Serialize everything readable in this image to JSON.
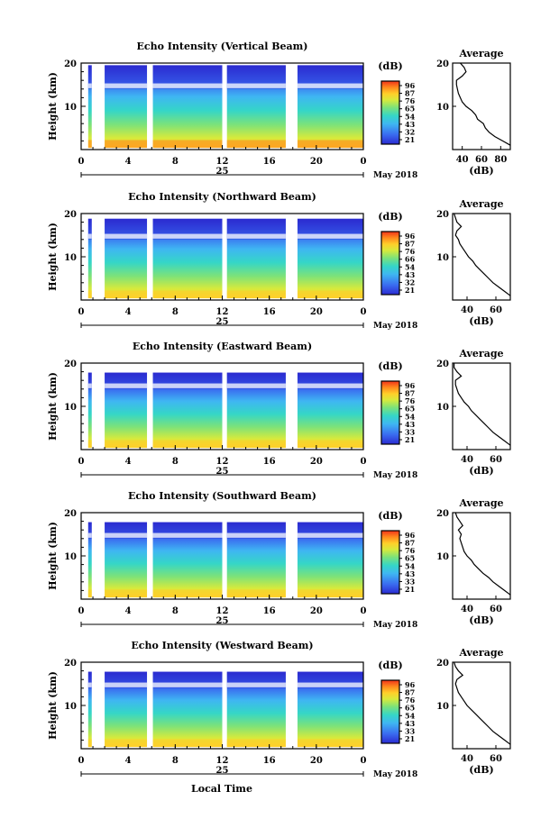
{
  "panels": [
    {
      "title": "Echo Intensity (Vertical Beam)",
      "cbar_ticks": [
        "96",
        "87",
        "76",
        "65",
        "54",
        "43",
        "32",
        "21"
      ],
      "avg_xticks": [
        "40",
        "60",
        "80"
      ],
      "avg_xlim": [
        30,
        90
      ]
    },
    {
      "title": "Echo Intensity (Northward Beam)",
      "cbar_ticks": [
        "96",
        "87",
        "76",
        "66",
        "54",
        "43",
        "32",
        "21"
      ],
      "avg_xticks": [
        "40",
        "60"
      ],
      "avg_xlim": [
        30,
        70
      ]
    },
    {
      "title": "Echo Intensity (Eastward Beam)",
      "cbar_ticks": [
        "96",
        "87",
        "76",
        "65",
        "54",
        "43",
        "33",
        "21"
      ],
      "avg_xticks": [
        "40",
        "60"
      ],
      "avg_xlim": [
        30,
        70
      ]
    },
    {
      "title": "Echo Intensity (Southward Beam)",
      "cbar_ticks": [
        "96",
        "87",
        "76",
        "65",
        "54",
        "43",
        "33",
        "21"
      ],
      "avg_xticks": [
        "40",
        "60"
      ],
      "avg_xlim": [
        30,
        70
      ]
    },
    {
      "title": "Echo Intensity (Westward Beam)",
      "cbar_ticks": [
        "96",
        "87",
        "76",
        "65",
        "54",
        "43",
        "33",
        "21"
      ],
      "avg_xticks": [
        "40",
        "60"
      ],
      "avg_xlim": [
        30,
        70
      ]
    }
  ],
  "ylabel": "Height (km)",
  "yticks": [
    "20",
    "10"
  ],
  "xticks": [
    "0",
    "4",
    "8",
    "12",
    "16",
    "20",
    "0"
  ],
  "date_day": "25",
  "date_month": "May 2018",
  "cbar_unit": "(dB)",
  "avg_title": "Average",
  "avg_xlabel": "(dB)",
  "xlabel": "Local Time",
  "chart_data": {
    "type": "heatmap",
    "series": [
      {
        "name": "Echo Intensity (Vertical Beam)",
        "avg_profile_db": [
          [
            90,
            1
          ],
          [
            82,
            2
          ],
          [
            74,
            3
          ],
          [
            68,
            4
          ],
          [
            64,
            5
          ],
          [
            62,
            6
          ],
          [
            56,
            7
          ],
          [
            54,
            8
          ],
          [
            50,
            9
          ],
          [
            44,
            10
          ],
          [
            40,
            11
          ],
          [
            38,
            12
          ],
          [
            36,
            13
          ],
          [
            35,
            14
          ],
          [
            34,
            15
          ],
          [
            34,
            16
          ],
          [
            40,
            17
          ],
          [
            44,
            18
          ],
          [
            42,
            19
          ],
          [
            38,
            20
          ]
        ]
      },
      {
        "name": "Echo Intensity (Northward Beam)",
        "avg_profile_db": [
          [
            70,
            1
          ],
          [
            66,
            2
          ],
          [
            62,
            3
          ],
          [
            58,
            4
          ],
          [
            55,
            5
          ],
          [
            52,
            6
          ],
          [
            49,
            7
          ],
          [
            46,
            8
          ],
          [
            44,
            9
          ],
          [
            41,
            10
          ],
          [
            39,
            11
          ],
          [
            37,
            12
          ],
          [
            35,
            13
          ],
          [
            34,
            14
          ],
          [
            32,
            15
          ],
          [
            33,
            16
          ],
          [
            36,
            17
          ],
          [
            33,
            18
          ],
          [
            32,
            19
          ],
          [
            31,
            20
          ]
        ]
      },
      {
        "name": "Echo Intensity (Eastward Beam)",
        "avg_profile_db": [
          [
            70,
            1
          ],
          [
            66,
            2
          ],
          [
            62,
            3
          ],
          [
            58,
            4
          ],
          [
            55,
            5
          ],
          [
            52,
            6
          ],
          [
            49,
            7
          ],
          [
            46,
            8
          ],
          [
            43,
            9
          ],
          [
            41,
            10
          ],
          [
            38,
            11
          ],
          [
            36,
            12
          ],
          [
            34,
            13
          ],
          [
            33,
            14
          ],
          [
            32,
            15
          ],
          [
            32,
            16
          ],
          [
            36,
            17
          ],
          [
            33,
            18
          ],
          [
            31,
            19
          ],
          [
            31,
            20
          ]
        ]
      },
      {
        "name": "Echo Intensity (Southward Beam)",
        "avg_profile_db": [
          [
            70,
            1
          ],
          [
            66,
            2
          ],
          [
            62,
            3
          ],
          [
            58,
            4
          ],
          [
            55,
            5
          ],
          [
            51,
            6
          ],
          [
            48,
            7
          ],
          [
            45,
            8
          ],
          [
            43,
            9
          ],
          [
            40,
            10
          ],
          [
            38,
            11
          ],
          [
            37,
            12
          ],
          [
            36,
            13
          ],
          [
            35,
            14
          ],
          [
            36,
            15
          ],
          [
            34,
            16
          ],
          [
            37,
            17
          ],
          [
            35,
            18
          ],
          [
            33,
            19
          ],
          [
            32,
            20
          ]
        ]
      },
      {
        "name": "Echo Intensity (Westward Beam)",
        "avg_profile_db": [
          [
            70,
            1
          ],
          [
            66,
            2
          ],
          [
            62,
            3
          ],
          [
            58,
            4
          ],
          [
            55,
            5
          ],
          [
            52,
            6
          ],
          [
            49,
            7
          ],
          [
            46,
            8
          ],
          [
            43,
            9
          ],
          [
            40,
            10
          ],
          [
            38,
            11
          ],
          [
            36,
            12
          ],
          [
            34,
            13
          ],
          [
            33,
            14
          ],
          [
            32,
            15
          ],
          [
            33,
            16
          ],
          [
            37,
            17
          ],
          [
            34,
            18
          ],
          [
            32,
            19
          ],
          [
            31,
            20
          ]
        ]
      }
    ],
    "x_range": [
      0,
      24
    ],
    "y_range": [
      0,
      20
    ],
    "color_range_db": [
      21,
      96
    ],
    "colors": [
      "#2b2bd0",
      "#3a6bf0",
      "#3fb6f2",
      "#35d6c7",
      "#7ce27a",
      "#d7ea3c",
      "#ffcf2a",
      "#ff8a1d",
      "#f0331a"
    ],
    "data_gaps_hours": [
      [
        0,
        0.6
      ],
      [
        0.9,
        2.0
      ],
      [
        5.6,
        6.1
      ],
      [
        12.0,
        12.4
      ],
      [
        17.4,
        18.4
      ]
    ]
  }
}
